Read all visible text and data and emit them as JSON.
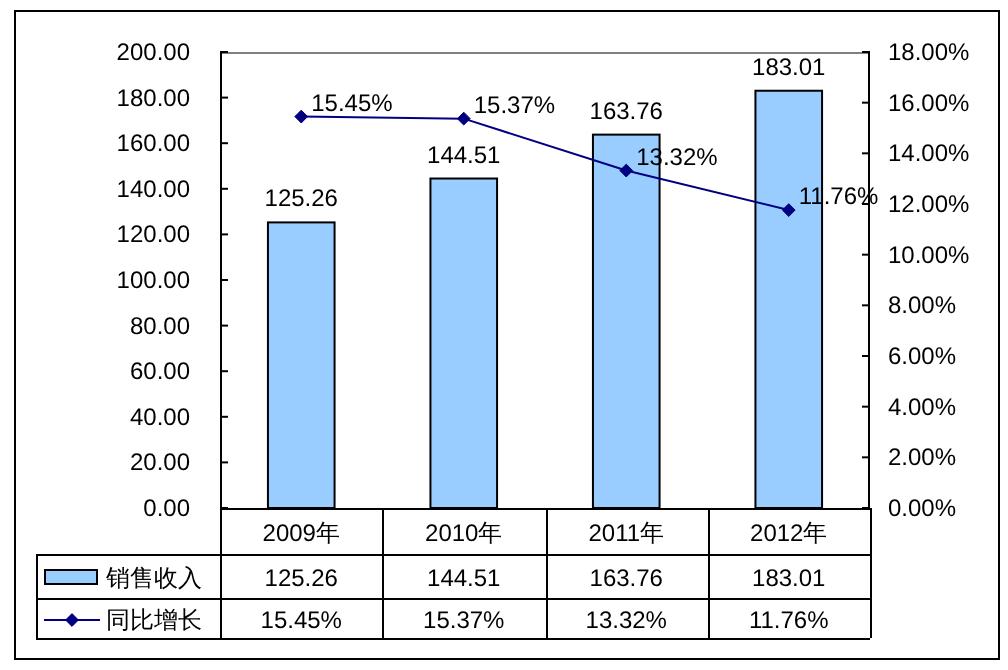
{
  "chart_data": {
    "type": "bar",
    "categories": [
      "2009年",
      "2010年",
      "2011年",
      "2012年"
    ],
    "series": [
      {
        "name": "销售收入",
        "color": "#99ccff",
        "values": [
          125.26,
          144.51,
          163.76,
          183.01
        ],
        "value_labels": [
          "125.26",
          "144.51",
          "163.76",
          "183.01"
        ]
      },
      {
        "name": "同比增长",
        "type": "line",
        "axis": "y2",
        "color": "#000080",
        "marker": "diamond",
        "values": [
          15.45,
          15.37,
          13.32,
          11.76
        ],
        "value_labels": [
          "15.45%",
          "15.37%",
          "13.32%",
          "11.76%"
        ]
      }
    ],
    "ylim": [
      0,
      200
    ],
    "yticks": [
      {
        "value": 0,
        "label": "0.00"
      },
      {
        "value": 20,
        "label": "20.00"
      },
      {
        "value": 40,
        "label": "40.00"
      },
      {
        "value": 60,
        "label": "60.00"
      },
      {
        "value": 80,
        "label": "80.00"
      },
      {
        "value": 100,
        "label": "100.00"
      },
      {
        "value": 120,
        "label": "120.00"
      },
      {
        "value": 140,
        "label": "140.00"
      },
      {
        "value": 160,
        "label": "160.00"
      },
      {
        "value": 180,
        "label": "180.00"
      },
      {
        "value": 200,
        "label": "200.00"
      }
    ],
    "y2lim": [
      0,
      18
    ],
    "y2ticks": [
      {
        "value": 0,
        "label": "0.00%"
      },
      {
        "value": 2,
        "label": "2.00%"
      },
      {
        "value": 4,
        "label": "4.00%"
      },
      {
        "value": 6,
        "label": "6.00%"
      },
      {
        "value": 8,
        "label": "8.00%"
      },
      {
        "value": 10,
        "label": "10.00%"
      },
      {
        "value": 12,
        "label": "12.00%"
      },
      {
        "value": 14,
        "label": "14.00%"
      },
      {
        "value": 16,
        "label": "16.00%"
      },
      {
        "value": 18,
        "label": "18.00%"
      }
    ],
    "legend": "bottom"
  }
}
